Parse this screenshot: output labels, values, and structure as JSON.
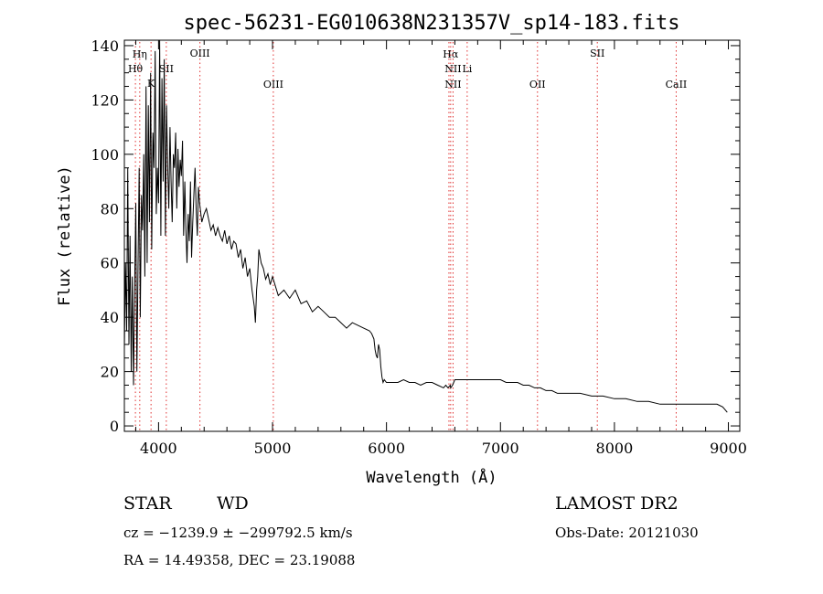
{
  "chart_data": {
    "type": "line",
    "title": "spec-56231-EG010638N231357V_sp14-183.fits",
    "xlabel": "Wavelength (Å)",
    "ylabel": "Flux (relative)",
    "xlim": [
      3700,
      9100
    ],
    "ylim": [
      -2,
      142
    ],
    "xticks": [
      4000,
      5000,
      6000,
      7000,
      8000,
      9000
    ],
    "yticks": [
      0,
      20,
      40,
      60,
      80,
      100,
      120,
      140
    ],
    "series": [
      {
        "x": [
          3700,
          3710,
          3720,
          3730,
          3740,
          3750,
          3760,
          3770,
          3780,
          3790,
          3800,
          3810,
          3820,
          3830,
          3840,
          3850,
          3860,
          3870,
          3880,
          3890,
          3900,
          3910,
          3920,
          3930,
          3940,
          3950,
          3960,
          3970,
          3980,
          3990,
          4000,
          4010,
          4020,
          4030,
          4040,
          4050,
          4060,
          4070,
          4080,
          4090,
          4100,
          4110,
          4120,
          4130,
          4140,
          4150,
          4160,
          4170,
          4180,
          4190,
          4200,
          4210,
          4220,
          4230,
          4240,
          4250,
          4260,
          4270,
          4280,
          4290,
          4300,
          4310,
          4320,
          4330,
          4340,
          4350,
          4360,
          4380,
          4400,
          4420,
          4440,
          4460,
          4480,
          4500,
          4520,
          4540,
          4560,
          4580,
          4600,
          4620,
          4640,
          4660,
          4680,
          4700,
          4720,
          4740,
          4760,
          4780,
          4800,
          4820,
          4840,
          4850,
          4860,
          4870,
          4880,
          4900,
          4920,
          4940,
          4960,
          4980,
          5000,
          5050,
          5100,
          5150,
          5200,
          5250,
          5300,
          5350,
          5400,
          5450,
          5500,
          5550,
          5600,
          5650,
          5700,
          5750,
          5800,
          5850,
          5870,
          5890,
          5900,
          5910,
          5920,
          5930,
          5940,
          5950,
          5960,
          5970,
          5980,
          6000,
          6050,
          6100,
          6150,
          6200,
          6250,
          6300,
          6350,
          6400,
          6450,
          6500,
          6520,
          6540,
          6560,
          6563,
          6580,
          6600,
          6650,
          6700,
          6750,
          6800,
          6850,
          6900,
          6950,
          7000,
          7050,
          7100,
          7150,
          7200,
          7250,
          7300,
          7350,
          7400,
          7450,
          7500,
          7600,
          7700,
          7800,
          7900,
          8000,
          8100,
          8200,
          8300,
          8400,
          8500,
          8600,
          8700,
          8800,
          8900,
          8950,
          8970,
          8990
        ],
        "values": [
          28,
          60,
          35,
          95,
          30,
          70,
          20,
          55,
          15,
          50,
          82,
          20,
          60,
          95,
          40,
          85,
          72,
          100,
          55,
          125,
          60,
          118,
          75,
          130,
          65,
          108,
          95,
          138,
          78,
          95,
          82,
          142,
          70,
          128,
          90,
          135,
          70,
          118,
          95,
          80,
          110,
          90,
          75,
          100,
          95,
          108,
          80,
          102,
          88,
          98,
          92,
          105,
          70,
          90,
          72,
          60,
          78,
          68,
          90,
          62,
          75,
          85,
          95,
          80,
          70,
          88,
          82,
          75,
          78,
          80,
          76,
          72,
          74,
          70,
          73,
          70,
          68,
          72,
          67,
          70,
          65,
          68,
          67,
          62,
          65,
          58,
          62,
          55,
          58,
          50,
          44,
          38,
          50,
          55,
          65,
          60,
          58,
          54,
          56,
          52,
          55,
          48,
          50,
          47,
          50,
          45,
          46,
          42,
          44,
          42,
          40,
          40,
          38,
          36,
          38,
          37,
          36,
          35,
          34,
          32,
          28,
          26,
          25,
          30,
          28,
          22,
          18,
          16,
          17,
          16,
          16,
          16,
          17,
          16,
          16,
          15,
          16,
          16,
          15,
          14,
          15,
          14,
          15,
          14,
          15,
          17,
          17,
          17,
          17,
          17,
          17,
          17,
          17,
          17,
          16,
          16,
          16,
          15,
          15,
          14,
          14,
          13,
          13,
          12,
          12,
          12,
          11,
          11,
          10,
          10,
          9,
          9,
          8,
          8,
          8,
          8,
          8,
          8,
          7,
          6,
          5
        ]
      }
    ],
    "lines": [
      {
        "wavelength": 3797,
        "label": "Hθ"
      },
      {
        "wavelength": 3835,
        "label": "Hη"
      },
      {
        "wavelength": 3934,
        "label": "K"
      },
      {
        "wavelength": 4068,
        "label": "SII"
      },
      {
        "wavelength": 4363,
        "label": "OIII"
      },
      {
        "wavelength": 5007,
        "label": "OIII"
      },
      {
        "wavelength": 6548,
        "label": ""
      },
      {
        "wavelength": 6563,
        "label": "Hα"
      },
      {
        "wavelength": 6584,
        "label": "NII"
      },
      {
        "wavelength": 6584,
        "label": "NII"
      },
      {
        "wavelength": 6708,
        "label": "Li"
      },
      {
        "wavelength": 7325,
        "label": "OII"
      },
      {
        "wavelength": 7325,
        "label": ""
      },
      {
        "wavelength": 7850,
        "label": "SII"
      },
      {
        "wavelength": 8542,
        "label": "CaII"
      }
    ],
    "grid": false,
    "legend": "none"
  },
  "info": {
    "object_class": "STAR",
    "subclass": "WD",
    "survey": "LAMOST DR2",
    "cz_line": "cz = −1239.9 ± −299792.5 km/s",
    "obs_date": "Obs-Date: 20121030",
    "coords": "RA =  14.49358, DEC =  23.19088"
  }
}
